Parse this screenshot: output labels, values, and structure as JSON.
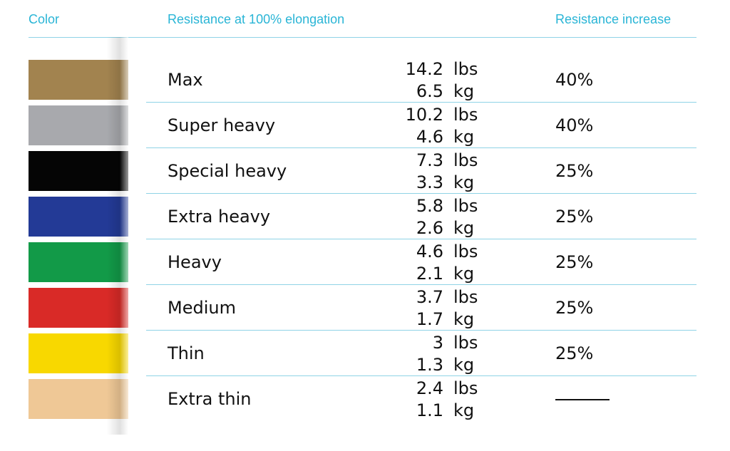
{
  "header": [
    "Color",
    "Resistance at 100% elongation",
    "Resistance increase"
  ],
  "units": [
    "lbs",
    "kg"
  ],
  "rows": [
    {
      "color": "#a2834f",
      "name": "Max",
      "lbs": "14.2",
      "kg": "6.5",
      "increase": "40%"
    },
    {
      "color": "#a8a9ad",
      "name": "Super heavy",
      "lbs": "10.2",
      "kg": "4.6",
      "increase": "40%"
    },
    {
      "color": "#050505",
      "name": "Special heavy",
      "lbs": "7.3",
      "kg": "3.3",
      "increase": "25%"
    },
    {
      "color": "#233a96",
      "name": "Extra heavy",
      "lbs": "5.8",
      "kg": "2.6",
      "increase": "25%"
    },
    {
      "color": "#129a48",
      "name": "Heavy",
      "lbs": "4.6",
      "kg": "2.1",
      "increase": "25%"
    },
    {
      "color": "#d92a27",
      "name": "Medium",
      "lbs": "3.7",
      "kg": "1.7",
      "increase": "25%"
    },
    {
      "color": "#f8d800",
      "name": "Thin",
      "lbs": "3",
      "kg": "1.3",
      "increase": "25%"
    },
    {
      "color": "#efc896",
      "name": "Extra thin",
      "lbs": "2.4",
      "kg": "1.1",
      "increase": null
    }
  ]
}
